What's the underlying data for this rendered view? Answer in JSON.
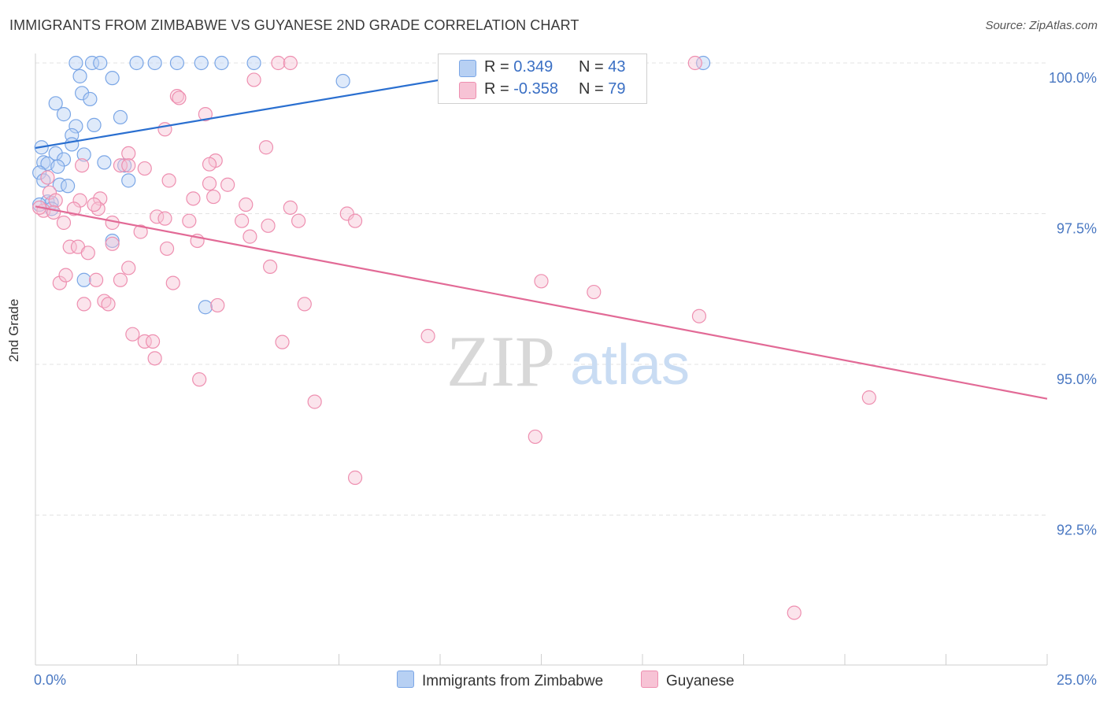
{
  "title": "IMMIGRANTS FROM ZIMBABWE VS GUYANESE 2ND GRADE CORRELATION CHART",
  "source": "Source: ZipAtlas.com",
  "watermark": {
    "zip": "ZIP",
    "atlas": "atlas"
  },
  "colors": {
    "blue": "#7aa6e6",
    "blue_fill": "#b7d0f3",
    "blue_line": "#2a6fd0",
    "pink": "#ee8fb0",
    "pink_fill": "#f7c3d5",
    "pink_line": "#e26a96",
    "tick_text": "#4a78c2"
  },
  "legend_top": {
    "rows": [
      {
        "r_label": "R = ",
        "r_value": "0.349",
        "n_label": "N = ",
        "n_value": "43"
      },
      {
        "r_label": "R = ",
        "r_value": "-0.358",
        "n_label": "N = ",
        "n_value": "79"
      }
    ]
  },
  "legend_bottom": {
    "items": [
      {
        "label": "Immigrants from Zimbabwe"
      },
      {
        "label": "Guyanese"
      }
    ]
  },
  "chart_data": {
    "type": "scatter",
    "title": "IMMIGRANTS FROM ZIMBABWE VS GUYANESE 2ND GRADE CORRELATION CHART",
    "xlabel": "",
    "ylabel": "2nd Grade",
    "xlim": [
      0,
      25
    ],
    "ylim": [
      90.0,
      100.5
    ],
    "x_tick_labels": [
      "0.0%",
      "25.0%"
    ],
    "y_ticks": [
      92.5,
      95.0,
      97.5,
      100.0
    ],
    "y_tick_labels": [
      "92.5%",
      "95.0%",
      "97.5%",
      "100.0%"
    ],
    "grid": true,
    "series": [
      {
        "name": "Immigrants from Zimbabwe",
        "color": "blue",
        "trend": {
          "x": [
            0.0,
            12.5
          ],
          "y": [
            98.59,
            100.0
          ]
        },
        "points": [
          [
            1.0,
            100.0
          ],
          [
            1.4,
            100.0
          ],
          [
            1.6,
            100.0
          ],
          [
            2.5,
            100.0
          ],
          [
            2.95,
            100.0
          ],
          [
            3.5,
            100.0
          ],
          [
            4.1,
            100.0
          ],
          [
            4.6,
            100.0
          ],
          [
            5.4,
            100.0
          ],
          [
            16.5,
            100.0
          ],
          [
            1.1,
            99.78
          ],
          [
            1.9,
            99.75
          ],
          [
            7.6,
            99.7
          ],
          [
            1.15,
            99.5
          ],
          [
            1.35,
            99.4
          ],
          [
            0.5,
            99.33
          ],
          [
            0.7,
            99.15
          ],
          [
            2.1,
            99.1
          ],
          [
            1.0,
            98.95
          ],
          [
            1.45,
            98.97
          ],
          [
            0.9,
            98.8
          ],
          [
            0.9,
            98.65
          ],
          [
            0.15,
            98.6
          ],
          [
            0.5,
            98.5
          ],
          [
            1.2,
            98.48
          ],
          [
            0.7,
            98.4
          ],
          [
            0.2,
            98.35
          ],
          [
            0.3,
            98.33
          ],
          [
            1.7,
            98.35
          ],
          [
            0.55,
            98.28
          ],
          [
            2.2,
            98.3
          ],
          [
            0.1,
            98.18
          ],
          [
            0.2,
            98.05
          ],
          [
            2.3,
            98.05
          ],
          [
            0.6,
            97.98
          ],
          [
            0.8,
            97.96
          ],
          [
            0.3,
            97.7
          ],
          [
            0.4,
            97.68
          ],
          [
            0.1,
            97.65
          ],
          [
            0.4,
            97.58
          ],
          [
            1.9,
            97.05
          ],
          [
            1.2,
            96.4
          ],
          [
            4.2,
            95.95
          ]
        ]
      },
      {
        "name": "Guyanese",
        "color": "pink",
        "trend": {
          "x": [
            0.0,
            25.0
          ],
          "y": [
            97.62,
            94.43
          ]
        },
        "points": [
          [
            6.0,
            100.0
          ],
          [
            6.3,
            100.0
          ],
          [
            16.3,
            100.0
          ],
          [
            5.4,
            99.72
          ],
          [
            3.5,
            99.45
          ],
          [
            3.55,
            99.42
          ],
          [
            4.2,
            99.15
          ],
          [
            3.2,
            98.9
          ],
          [
            5.7,
            98.6
          ],
          [
            2.3,
            98.5
          ],
          [
            4.45,
            98.38
          ],
          [
            4.3,
            98.32
          ],
          [
            2.1,
            98.3
          ],
          [
            2.3,
            98.3
          ],
          [
            1.15,
            98.3
          ],
          [
            2.7,
            98.25
          ],
          [
            3.3,
            98.05
          ],
          [
            4.3,
            98.0
          ],
          [
            4.75,
            97.98
          ],
          [
            0.3,
            98.1
          ],
          [
            0.35,
            97.85
          ],
          [
            1.1,
            97.72
          ],
          [
            1.6,
            97.75
          ],
          [
            0.5,
            97.72
          ],
          [
            3.9,
            97.75
          ],
          [
            4.4,
            97.78
          ],
          [
            5.2,
            97.65
          ],
          [
            6.3,
            97.6
          ],
          [
            0.2,
            97.55
          ],
          [
            0.45,
            97.52
          ],
          [
            0.95,
            97.58
          ],
          [
            1.55,
            97.58
          ],
          [
            7.7,
            97.5
          ],
          [
            3.0,
            97.45
          ],
          [
            3.2,
            97.42
          ],
          [
            1.9,
            97.35
          ],
          [
            3.8,
            97.38
          ],
          [
            5.1,
            97.38
          ],
          [
            6.5,
            97.38
          ],
          [
            7.9,
            97.38
          ],
          [
            0.7,
            97.35
          ],
          [
            1.45,
            97.65
          ],
          [
            2.6,
            97.2
          ],
          [
            5.3,
            97.12
          ],
          [
            5.75,
            97.3
          ],
          [
            1.9,
            97.0
          ],
          [
            4.0,
            97.05
          ],
          [
            0.85,
            96.95
          ],
          [
            1.05,
            96.95
          ],
          [
            3.25,
            96.92
          ],
          [
            1.3,
            96.85
          ],
          [
            2.3,
            96.6
          ],
          [
            5.8,
            96.62
          ],
          [
            1.5,
            96.4
          ],
          [
            2.1,
            96.4
          ],
          [
            0.6,
            96.35
          ],
          [
            0.75,
            96.48
          ],
          [
            3.4,
            96.35
          ],
          [
            12.5,
            96.38
          ],
          [
            13.8,
            96.2
          ],
          [
            1.2,
            96.0
          ],
          [
            1.7,
            96.05
          ],
          [
            1.8,
            96.0
          ],
          [
            4.5,
            95.98
          ],
          [
            6.65,
            96.0
          ],
          [
            16.4,
            95.8
          ],
          [
            2.4,
            95.5
          ],
          [
            2.7,
            95.38
          ],
          [
            2.9,
            95.38
          ],
          [
            6.1,
            95.37
          ],
          [
            9.7,
            95.47
          ],
          [
            2.95,
            95.1
          ],
          [
            4.05,
            94.75
          ],
          [
            6.9,
            94.38
          ],
          [
            20.6,
            94.45
          ],
          [
            12.35,
            93.8
          ],
          [
            7.9,
            93.12
          ],
          [
            18.75,
            90.88
          ],
          [
            0.1,
            97.6
          ]
        ]
      }
    ]
  }
}
